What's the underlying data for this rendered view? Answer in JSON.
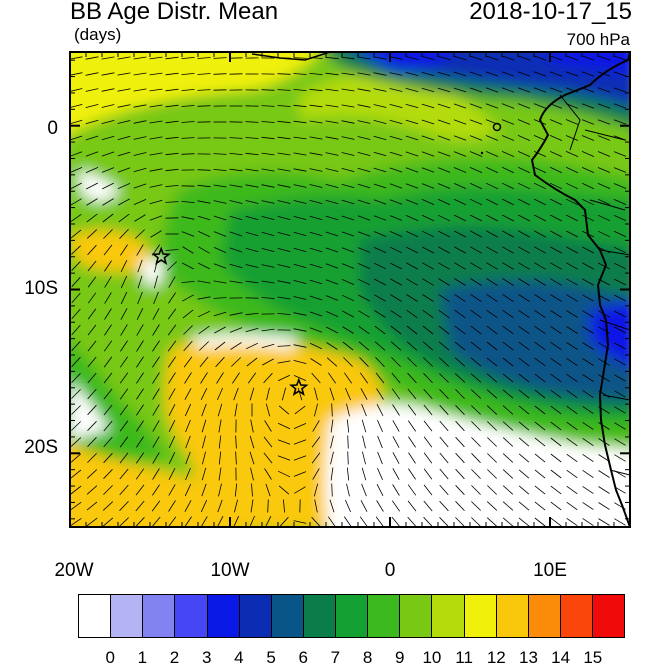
{
  "header": {
    "title": "BB Age Distr. Mean",
    "datestamp": "2018-10-17_15",
    "units": "(days)",
    "level": "700 hPa"
  },
  "axes": {
    "lat_labels": [
      "0",
      "10S",
      "20S"
    ],
    "lat_values": [
      0,
      -10,
      -20
    ],
    "lon_labels": [
      "20W",
      "10W",
      "0",
      "10E"
    ],
    "lon_values": [
      -20,
      -10,
      0,
      10
    ],
    "lat_range": [
      -24.5,
      4.5
    ],
    "lon_range": [
      -20,
      15
    ]
  },
  "colorbar": {
    "labels": [
      "0",
      "1",
      "2",
      "3",
      "4",
      "5",
      "6",
      "7",
      "8",
      "9",
      "10",
      "11",
      "12",
      "13",
      "14",
      "15"
    ],
    "colors": [
      "#ffffff",
      "#b4b4f5",
      "#8282f0",
      "#4646f5",
      "#0a19e6",
      "#0a2db4",
      "#0a5587",
      "#0a7d4b",
      "#14a032",
      "#3cb91e",
      "#78c814",
      "#b4dc0a",
      "#f0f00a",
      "#fac80a",
      "#fa8c0a",
      "#fa460a",
      "#f00a0a"
    ]
  },
  "markers": [
    {
      "name": "site-star-1",
      "lat": -8.0,
      "lon": -14.3
    },
    {
      "name": "site-star-2",
      "lat": -16.0,
      "lon": -5.7
    }
  ]
}
